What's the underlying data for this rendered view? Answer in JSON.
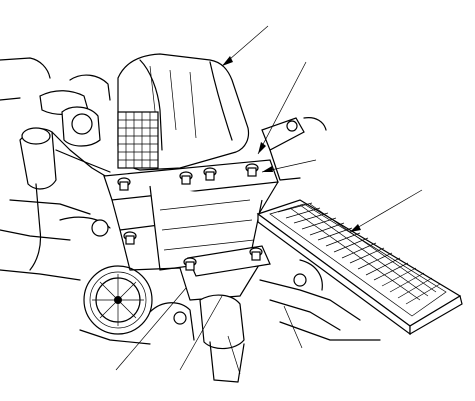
{
  "figure": {
    "callouts": [
      {
        "id": "air-cleaner-housing"
      },
      {
        "id": "air-cleaner-hose-clamp"
      },
      {
        "id": "mounting-bolt-upper"
      },
      {
        "id": "air-filter-element"
      },
      {
        "id": "lower-bolt-left"
      },
      {
        "id": "lower-bolt-center-left"
      },
      {
        "id": "intake-duct"
      },
      {
        "id": "lower-bolt-right"
      }
    ],
    "colors": {
      "ink": "#000000",
      "paper": "#ffffff"
    }
  }
}
